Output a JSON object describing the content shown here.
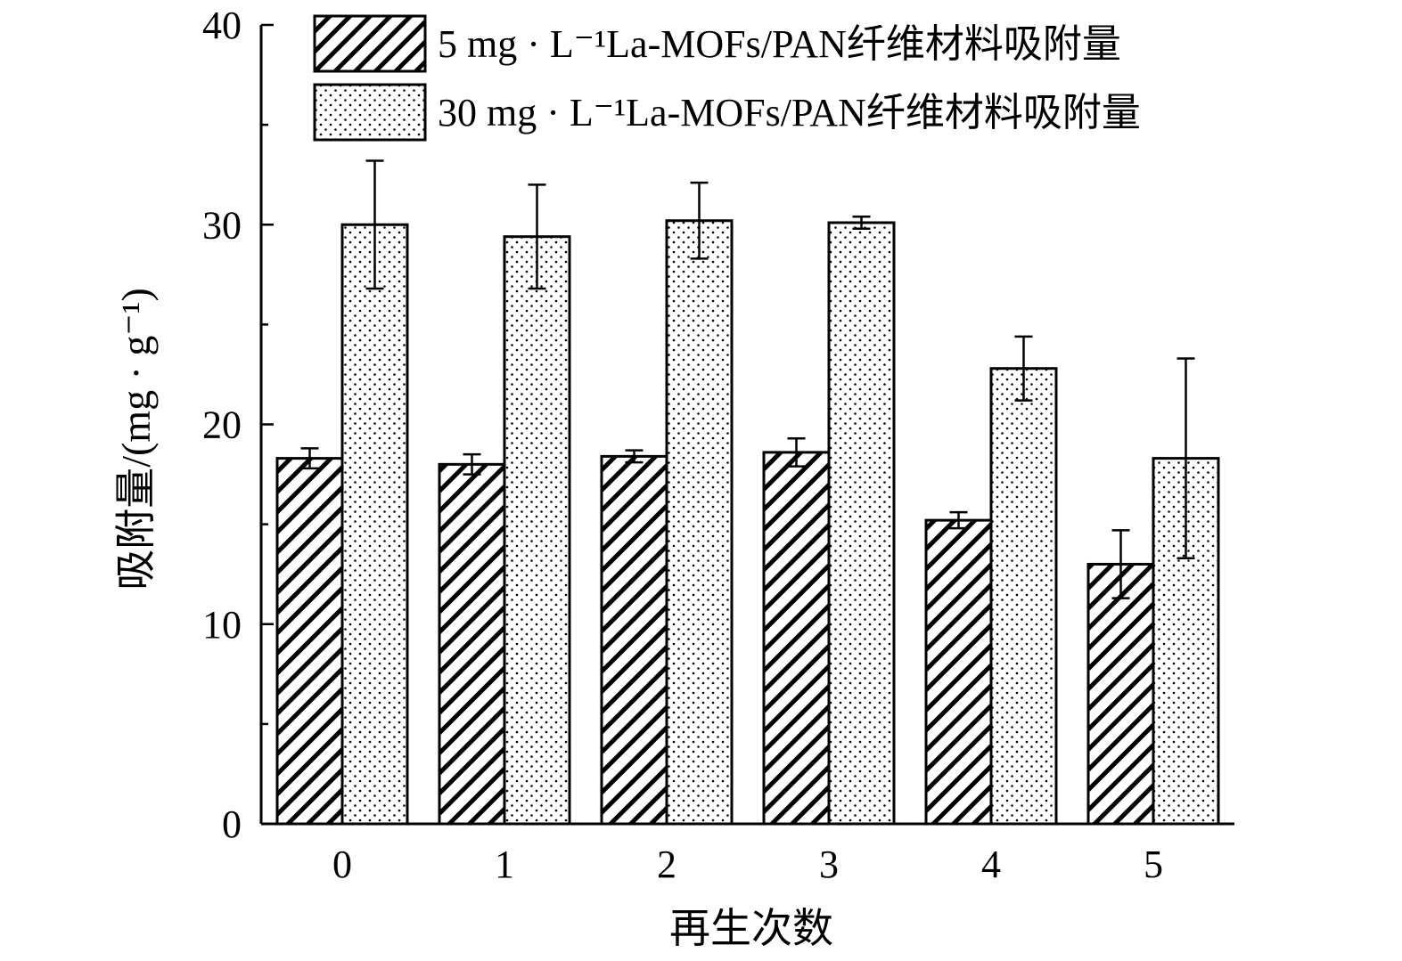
{
  "chart_data": {
    "type": "bar",
    "categories": [
      "0",
      "1",
      "2",
      "3",
      "4",
      "5"
    ],
    "series": [
      {
        "name": "5 mg · L⁻¹La-MOFs/PAN纤维材料吸附量",
        "pattern": "hatch",
        "values": [
          18.3,
          18.0,
          18.4,
          18.6,
          15.2,
          13.0
        ],
        "errors": [
          0.5,
          0.5,
          0.3,
          0.7,
          0.4,
          1.7
        ]
      },
      {
        "name": "30 mg · L⁻¹La-MOFs/PAN纤维材料吸附量",
        "pattern": "dots",
        "values": [
          30.0,
          29.4,
          30.2,
          30.1,
          22.8,
          18.3
        ],
        "errors": [
          3.2,
          2.6,
          1.9,
          0.3,
          1.6,
          5.0
        ]
      }
    ],
    "xlabel": "再生次数",
    "ylabel": "吸附量/(mg · g⁻¹)",
    "ylim": [
      0,
      40
    ],
    "yticks": [
      0,
      10,
      20,
      30,
      40
    ],
    "legend_position": "top-left",
    "grid": false,
    "colors": {
      "bar_fill": "#ffffff",
      "stroke": "#000000"
    }
  }
}
